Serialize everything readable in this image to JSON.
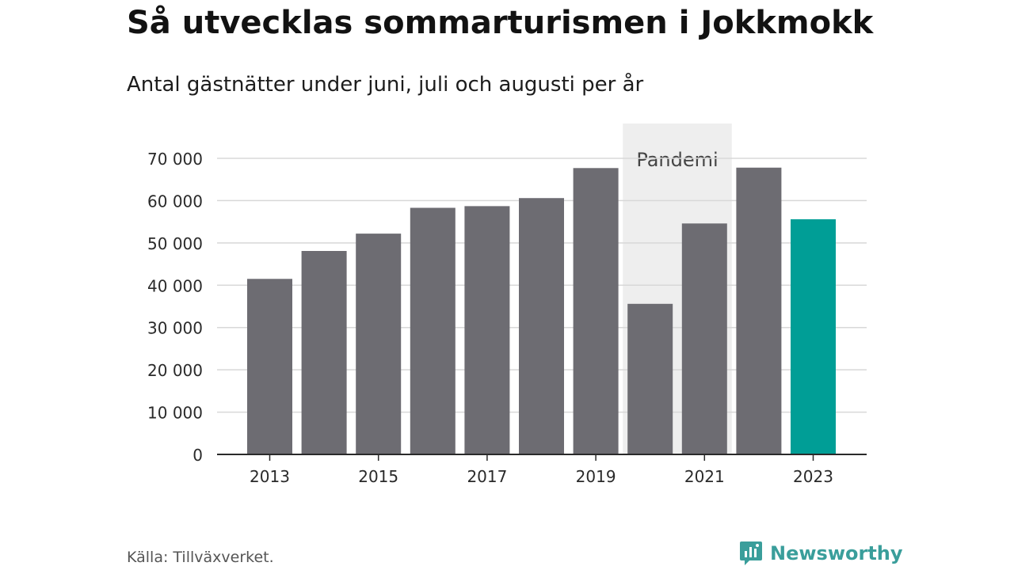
{
  "title": "Så utvecklas sommarturismen i Jokkmokk",
  "subtitle": "Antal gästnätter under juni, juli och augusti per år",
  "source": "Källa: Tillväxverket.",
  "brand": {
    "name": "Newsworthy",
    "color": "#3a9e9b"
  },
  "chart_data": {
    "type": "bar",
    "categories": [
      "2013",
      "2014",
      "2015",
      "2016",
      "2017",
      "2018",
      "2019",
      "2020",
      "2021",
      "2022",
      "2023"
    ],
    "values": [
      41500,
      48100,
      52200,
      58300,
      58700,
      60600,
      67700,
      35600,
      54600,
      67800,
      55600
    ],
    "x_tick_labels": [
      "2013",
      "2015",
      "2017",
      "2019",
      "2021",
      "2023"
    ],
    "y_ticks": [
      0,
      10000,
      20000,
      30000,
      40000,
      50000,
      60000,
      70000
    ],
    "y_tick_labels": [
      "0",
      "10 000",
      "20 000",
      "30 000",
      "40 000",
      "50 000",
      "60 000",
      "70 000"
    ],
    "ylim": [
      0,
      70000
    ],
    "grid": true,
    "highlight": {
      "category": "2023",
      "color": "#009e96"
    },
    "bar_color": "#6d6c72",
    "annotation": {
      "label": "Pandemi",
      "from": "2020",
      "to": "2021",
      "color": "#eeeeee"
    },
    "xlabel": "",
    "ylabel": ""
  }
}
